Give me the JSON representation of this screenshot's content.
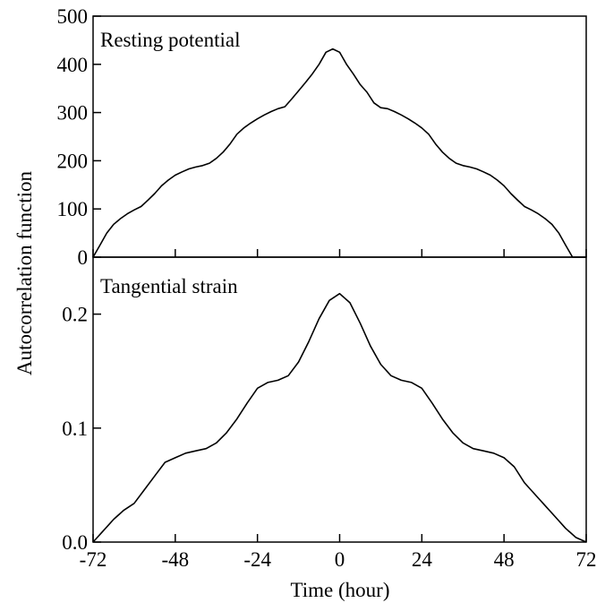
{
  "chart_data": [
    {
      "type": "line",
      "title": "Resting potential",
      "xlabel": "Time (hour)",
      "ylabel": "Autocorrelation function",
      "xlim": [
        -72,
        72
      ],
      "ylim": [
        0,
        500
      ],
      "grid": false,
      "x_ticks": [
        "-72",
        "-48",
        "-24",
        "0",
        "24",
        "48",
        "72"
      ],
      "y_ticks": [
        "0",
        "100",
        "200",
        "300",
        "400",
        "500"
      ],
      "series": [
        {
          "x": [
            -72,
            -70,
            -68,
            -66,
            -64,
            -62,
            -60,
            -58,
            -56,
            -54,
            -52,
            -50,
            -48,
            -46,
            -44,
            -42,
            -40,
            -38,
            -36,
            -34,
            -32,
            -30,
            -28,
            -26,
            -24,
            -22,
            -20,
            -18,
            -16,
            -14,
            -12,
            -10,
            -8,
            -6,
            -4,
            -2,
            0,
            2,
            4,
            6,
            8,
            10,
            12,
            14,
            16,
            18,
            20,
            22,
            24,
            26,
            28,
            30,
            32,
            34,
            36,
            38,
            40,
            42,
            44,
            46,
            48,
            50,
            52,
            54,
            56,
            58,
            60,
            62,
            64,
            66,
            68,
            70,
            72
          ],
          "y": [
            0,
            25,
            50,
            68,
            80,
            90,
            98,
            105,
            118,
            132,
            148,
            160,
            170,
            177,
            183,
            187,
            190,
            195,
            205,
            218,
            235,
            255,
            268,
            278,
            287,
            295,
            302,
            308,
            312,
            328,
            345,
            362,
            380,
            400,
            425,
            432,
            425,
            400,
            380,
            358,
            342,
            320,
            310,
            308,
            302,
            295,
            287,
            278,
            268,
            255,
            235,
            218,
            205,
            195,
            190,
            187,
            183,
            177,
            170,
            160,
            148,
            132,
            118,
            105,
            98,
            90,
            80,
            68,
            50,
            25,
            0,
            0,
            0
          ]
        }
      ]
    },
    {
      "type": "line",
      "title": "Tangential strain",
      "xlabel": "Time (hour)",
      "ylabel": "Autocorrelation function",
      "xlim": [
        -72,
        72
      ],
      "ylim": [
        0,
        0.25
      ],
      "grid": false,
      "x_ticks": [
        "-72",
        "-48",
        "-24",
        "0",
        "24",
        "48",
        "72"
      ],
      "y_ticks": [
        "0.0",
        "0.1",
        "0.2"
      ],
      "series": [
        {
          "x": [
            -72,
            -69,
            -66,
            -63,
            -60,
            -57,
            -54,
            -51,
            -48,
            -45,
            -42,
            -39,
            -36,
            -33,
            -30,
            -27,
            -24,
            -21,
            -18,
            -15,
            -12,
            -9,
            -6,
            -3,
            0,
            3,
            6,
            9,
            12,
            15,
            18,
            21,
            24,
            27,
            30,
            33,
            36,
            39,
            42,
            45,
            48,
            51,
            54,
            57,
            60,
            63,
            66,
            69,
            72
          ],
          "y": [
            0.0,
            0.01,
            0.02,
            0.028,
            0.034,
            0.046,
            0.058,
            0.07,
            0.074,
            0.078,
            0.08,
            0.082,
            0.087,
            0.096,
            0.108,
            0.122,
            0.135,
            0.14,
            0.142,
            0.146,
            0.158,
            0.176,
            0.196,
            0.212,
            0.218,
            0.21,
            0.192,
            0.172,
            0.156,
            0.146,
            0.142,
            0.14,
            0.135,
            0.122,
            0.108,
            0.096,
            0.087,
            0.082,
            0.08,
            0.078,
            0.074,
            0.066,
            0.052,
            0.042,
            0.032,
            0.022,
            0.012,
            0.004,
            0.0
          ]
        }
      ]
    }
  ]
}
